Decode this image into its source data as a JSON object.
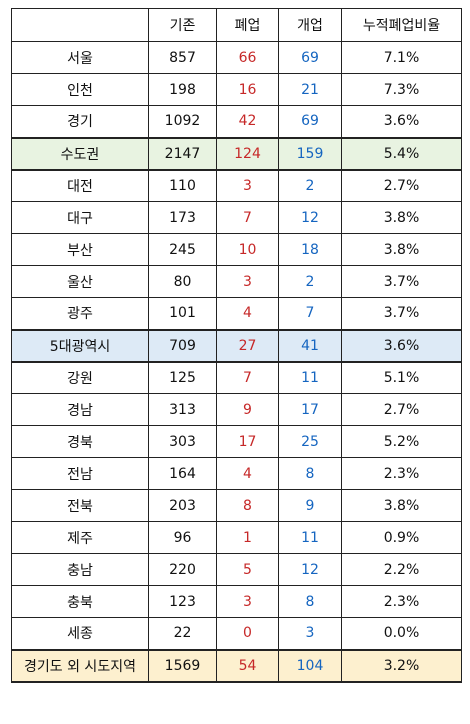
{
  "headers": [
    "",
    "기존",
    "폐업",
    "개업",
    "누적폐업비율"
  ],
  "rows": [
    {
      "region": "서울",
      "existing": "857",
      "closed": "66",
      "opened": "69",
      "ratio": "7.1%",
      "type": "normal"
    },
    {
      "region": "인천",
      "existing": "198",
      "closed": "16",
      "opened": "21",
      "ratio": "7.3%",
      "type": "normal"
    },
    {
      "region": "경기",
      "existing": "1092",
      "closed": "42",
      "opened": "69",
      "ratio": "3.6%",
      "type": "normal"
    },
    {
      "region": "수도권",
      "existing": "2147",
      "closed": "124",
      "opened": "159",
      "ratio": "5.4%",
      "type": "sum-metro"
    },
    {
      "region": "대전",
      "existing": "110",
      "closed": "3",
      "opened": "2",
      "ratio": "2.7%",
      "type": "normal"
    },
    {
      "region": "대구",
      "existing": "173",
      "closed": "7",
      "opened": "12",
      "ratio": "3.8%",
      "type": "normal"
    },
    {
      "region": "부산",
      "existing": "245",
      "closed": "10",
      "opened": "18",
      "ratio": "3.8%",
      "type": "normal"
    },
    {
      "region": "울산",
      "existing": "80",
      "closed": "3",
      "opened": "2",
      "ratio": "3.7%",
      "type": "normal"
    },
    {
      "region": "광주",
      "existing": "101",
      "closed": "4",
      "opened": "7",
      "ratio": "3.7%",
      "type": "normal"
    },
    {
      "region": "5대광역시",
      "existing": "709",
      "closed": "27",
      "opened": "41",
      "ratio": "3.6%",
      "type": "sum-five"
    },
    {
      "region": "강원",
      "existing": "125",
      "closed": "7",
      "opened": "11",
      "ratio": "5.1%",
      "type": "normal"
    },
    {
      "region": "경남",
      "existing": "313",
      "closed": "9",
      "opened": "17",
      "ratio": "2.7%",
      "type": "normal"
    },
    {
      "region": "경북",
      "existing": "303",
      "closed": "17",
      "opened": "25",
      "ratio": "5.2%",
      "type": "normal"
    },
    {
      "region": "전남",
      "existing": "164",
      "closed": "4",
      "opened": "8",
      "ratio": "2.3%",
      "type": "normal"
    },
    {
      "region": "전북",
      "existing": "203",
      "closed": "8",
      "opened": "9",
      "ratio": "3.8%",
      "type": "normal"
    },
    {
      "region": "제주",
      "existing": "96",
      "closed": "1",
      "opened": "11",
      "ratio": "0.9%",
      "type": "normal"
    },
    {
      "region": "충남",
      "existing": "220",
      "closed": "5",
      "opened": "12",
      "ratio": "2.2%",
      "type": "normal"
    },
    {
      "region": "충북",
      "existing": "123",
      "closed": "3",
      "opened": "8",
      "ratio": "2.3%",
      "type": "normal"
    },
    {
      "region": "세종",
      "existing": "22",
      "closed": "0",
      "opened": "3",
      "ratio": "0.0%",
      "type": "normal"
    },
    {
      "region": "경기도 외 시도지역",
      "existing": "1569",
      "closed": "54",
      "opened": "104",
      "ratio": "3.2%",
      "type": "sum-other"
    }
  ],
  "colors": {
    "closed": "#c62828",
    "opened": "#1565c0",
    "metro_bg": "#e8f3e1",
    "five_bg": "#ddeaf6",
    "other_bg": "#fdf0cf"
  }
}
